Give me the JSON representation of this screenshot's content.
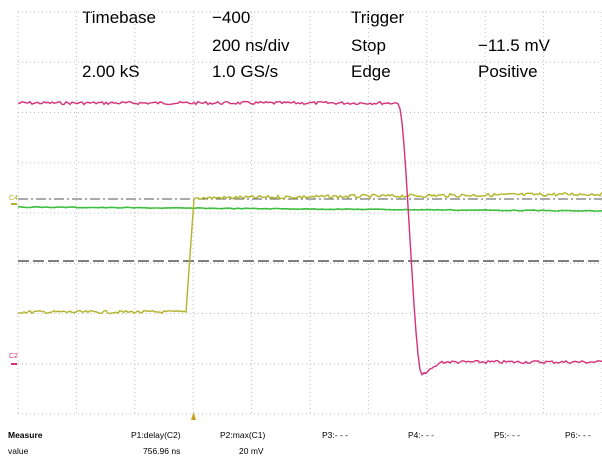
{
  "header": {
    "timebase_label": "Timebase",
    "timebase_delay": "−400",
    "timebase_scale": "200 ns/div",
    "sample_count": "2.00 kS",
    "sample_rate": "1.0 GS/s",
    "trigger_label": "Trigger",
    "trigger_mode": "Stop",
    "trigger_level": "−11.5 mV",
    "trigger_type": "Edge",
    "trigger_slope": "Positive"
  },
  "channel_tags": {
    "c4": "C4",
    "c2": "C2"
  },
  "colors": {
    "magenta_trace": "#d6307c",
    "yellow_trace": "#b3b32a",
    "green_trace": "#3cbf3c",
    "grid": "#bdbdbd",
    "reference_line": "#555555",
    "trigger_marker": "#c8a020"
  },
  "measure": {
    "row_header": "Measure",
    "value_header": "value",
    "p1": {
      "label": "P1:delay(C2)",
      "value": "756.96 ns"
    },
    "p2": {
      "label": "P2:max(C1)",
      "value": "20 mV"
    },
    "p3": {
      "label": "P3:- - -"
    },
    "p4": {
      "label": "P4:- - -"
    },
    "p5": {
      "label": "P5:- - -"
    },
    "p6": {
      "label": "P6:- - -"
    }
  }
}
